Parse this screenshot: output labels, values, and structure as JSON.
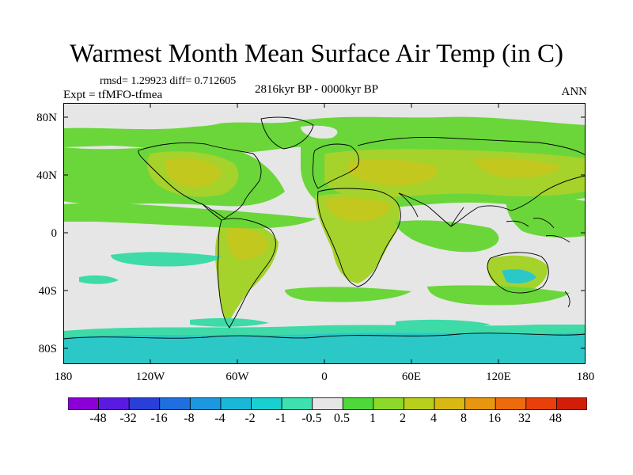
{
  "title": "Warmest Month Mean Surface Air Temp (in C)",
  "stats": "rmsd= 1.29923 diff= 0.712605",
  "experiment": "Expt = tfMFO-tfmea",
  "period": "2816kyr BP - 0000kyr BP",
  "season": "ANN",
  "lat_labels": [
    "80N",
    "40N",
    "0",
    "40S",
    "80S"
  ],
  "lon_labels": [
    "180",
    "120W",
    "60W",
    "0",
    "60E",
    "120E",
    "180"
  ],
  "colorbar": {
    "labels": [
      "-48",
      "-32",
      "-16",
      "-8",
      "-4",
      "-2",
      "-1",
      "-0.5",
      "0.5",
      "1",
      "2",
      "4",
      "8",
      "16",
      "32",
      "48"
    ],
    "colors": [
      "#8a00d6",
      "#5a1be0",
      "#2a3fd8",
      "#1f6fe0",
      "#1c98e0",
      "#1ab8d8",
      "#19cfd0",
      "#3ee0b0",
      "#e6e6e6",
      "#4fd83a",
      "#8ed82a",
      "#b8cf1e",
      "#d9b814",
      "#e8960f",
      "#ee6a0c",
      "#e8400a",
      "#d01e08"
    ]
  },
  "map_colors": {
    "neutral": "#e6e6e6",
    "green": "#6ad63a",
    "yellowgreen": "#a6d22c",
    "olive": "#c2c81e",
    "orange": "#d6b21a",
    "cyan": "#2cc8c8",
    "teal": "#3edaa8",
    "coast": "#000000"
  }
}
